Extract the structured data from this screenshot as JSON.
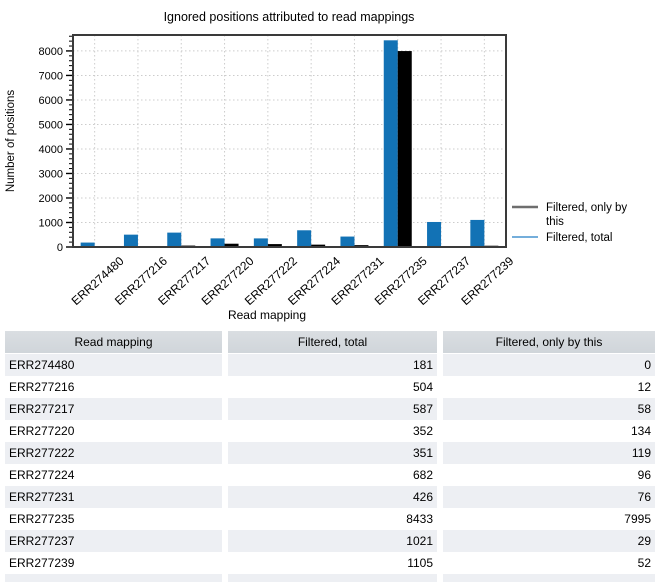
{
  "chart_data": {
    "type": "bar",
    "title": "Ignored positions attributed to read mappings",
    "xlabel": "Read mapping",
    "ylabel": "Number of positions",
    "categories": [
      "ERR274480",
      "ERR277216",
      "ERR277217",
      "ERR277220",
      "ERR277222",
      "ERR277224",
      "ERR277231",
      "ERR277235",
      "ERR277237",
      "ERR277239"
    ],
    "series": [
      {
        "name": "Filtered, total",
        "color": "#1272b5",
        "values": [
          181,
          504,
          587,
          352,
          351,
          682,
          426,
          8433,
          1021,
          1105
        ]
      },
      {
        "name": "Filtered, only by this",
        "color": "#000000",
        "values": [
          0,
          12,
          58,
          134,
          119,
          96,
          76,
          7995,
          29,
          52
        ]
      }
    ],
    "ylim": [
      0,
      8650
    ],
    "yticks": [
      0,
      1000,
      2000,
      3000,
      4000,
      5000,
      6000,
      7000,
      8000
    ],
    "ytick_minor_step": 200,
    "grid": true,
    "legend_position": "right",
    "legend": [
      {
        "label": "Filtered, only by this",
        "line_color": "#6e6e6e"
      },
      {
        "label": "Filtered, total",
        "line_color": "#4793cf"
      }
    ],
    "colors": {
      "grid": "#cccccc",
      "plot_border": "#3a3a3a",
      "axis_tick": "#000000"
    }
  },
  "table": {
    "columns": [
      "Read mapping",
      "Filtered, total",
      "Filtered, only by this"
    ],
    "rows": [
      [
        "ERR274480",
        181,
        0
      ],
      [
        "ERR277216",
        504,
        12
      ],
      [
        "ERR277217",
        587,
        58
      ],
      [
        "ERR277220",
        352,
        134
      ],
      [
        "ERR277222",
        351,
        119
      ],
      [
        "ERR277224",
        682,
        96
      ],
      [
        "ERR277231",
        426,
        76
      ],
      [
        "ERR277235",
        8433,
        7995
      ],
      [
        "ERR277237",
        1021,
        29
      ],
      [
        "ERR277239",
        1105,
        52
      ]
    ]
  }
}
